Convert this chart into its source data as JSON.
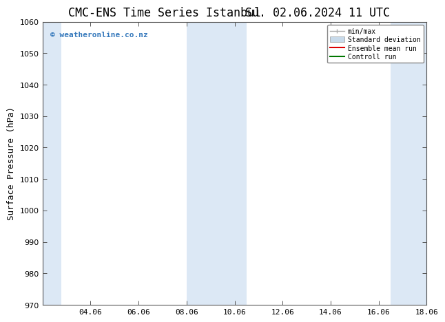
{
  "title": "CMC-ENS Time Series Istanbul",
  "title2": "Su. 02.06.2024 11 UTC",
  "ylabel": "Surface Pressure (hPa)",
  "ylim": [
    970,
    1060
  ],
  "yticks": [
    970,
    980,
    990,
    1000,
    1010,
    1020,
    1030,
    1040,
    1050,
    1060
  ],
  "xlim": [
    0,
    16
  ],
  "xtick_labels": [
    "04.06",
    "06.06",
    "08.06",
    "10.06",
    "12.06",
    "14.06",
    "16.06",
    "18.06"
  ],
  "xtick_positions": [
    2,
    4,
    6,
    8,
    10,
    12,
    14,
    16
  ],
  "background_color": "#ffffff",
  "plot_bg_color": "#ffffff",
  "shaded_regions": [
    {
      "xstart": 0.0,
      "xend": 0.8,
      "color": "#dce8f5"
    },
    {
      "xstart": 6.0,
      "xend": 8.5,
      "color": "#dce8f5"
    },
    {
      "xstart": 14.5,
      "xend": 16.0,
      "color": "#dce8f5"
    }
  ],
  "watermark": "© weatheronline.co.nz",
  "watermark_color": "#3377bb",
  "legend_labels": [
    "min/max",
    "Standard deviation",
    "Ensemble mean run",
    "Controll run"
  ],
  "legend_line_colors": [
    "#aaaaaa",
    "#c8daea",
    "#dd0000",
    "#007700"
  ],
  "title_fontsize": 12,
  "axis_fontsize": 8,
  "ylabel_fontsize": 9,
  "watermark_fontsize": 8
}
